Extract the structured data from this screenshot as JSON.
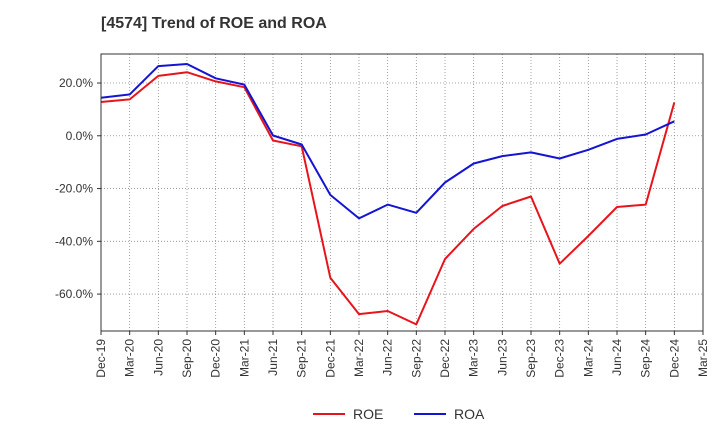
{
  "chart_data": {
    "type": "line",
    "title": "[4574]  Trend of ROE and ROA",
    "xlabel": "",
    "ylabel": "",
    "x_tick_labels": [
      "Dec-19",
      "Mar-20",
      "Jun-20",
      "Sep-20",
      "Dec-20",
      "Mar-21",
      "Jun-21",
      "Sep-21",
      "Dec-21",
      "Mar-22",
      "Jun-22",
      "Sep-22",
      "Dec-22",
      "Mar-23",
      "Jun-23",
      "Sep-23",
      "Dec-23",
      "Mar-24",
      "Jun-24",
      "Sep-24",
      "Dec-24",
      "Mar-25"
    ],
    "y_ticks": [
      20,
      0,
      -20,
      -40,
      -60
    ],
    "y_tick_labels": [
      "20.0%",
      "0.0%",
      "-20.0%",
      "-40.0%",
      "-60.0%"
    ],
    "ylim": [
      -74,
      31
    ],
    "grid": true,
    "legend_position": "bottom",
    "series": [
      {
        "name": "ROE",
        "color": "#e8141b",
        "values": [
          12.8,
          13.8,
          22.7,
          24.1,
          20.6,
          18.4,
          -1.8,
          -4.0,
          -53.8,
          -67.6,
          -66.4,
          -71.5,
          -46.7,
          -35.3,
          -26.6,
          -23.0,
          -48.5,
          -38.0,
          -27.0,
          -26.1,
          12.6,
          null
        ]
      },
      {
        "name": "ROA",
        "color": "#1414d2",
        "values": [
          14.4,
          15.7,
          26.4,
          27.2,
          21.8,
          19.4,
          0.1,
          -3.3,
          -22.4,
          -31.3,
          -26.1,
          -29.2,
          -17.7,
          -10.5,
          -7.7,
          -6.3,
          -8.6,
          -5.3,
          -1.2,
          0.5,
          5.5,
          null
        ]
      }
    ]
  }
}
